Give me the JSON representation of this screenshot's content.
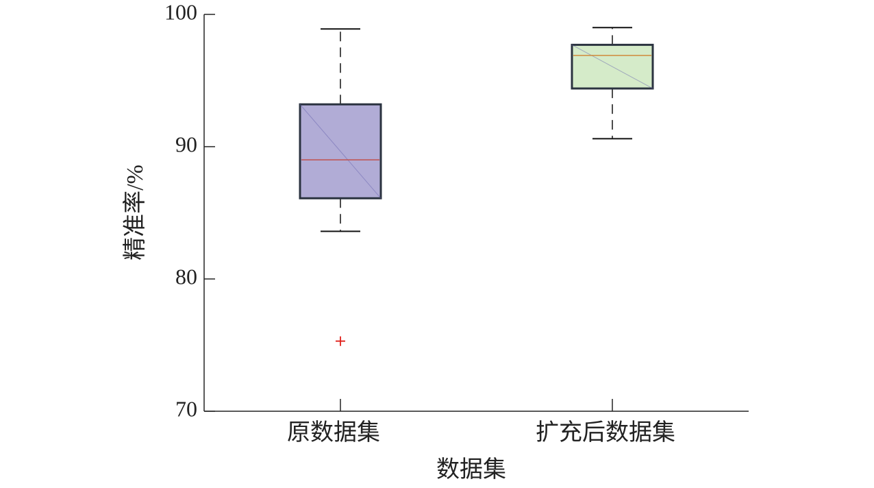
{
  "chart_data": {
    "type": "box",
    "xlabel": "数据集",
    "ylabel": "精准率/%",
    "categories": [
      "原数据集",
      "扩充后数据集"
    ],
    "boxes": [
      {
        "whisker_low": 83.6,
        "q1": 86.1,
        "median": 89.0,
        "q3": 93.2,
        "whisker_high": 98.9,
        "outliers": [
          75.3
        ],
        "color": "#b1acd6",
        "median_color": "#c0504d"
      },
      {
        "whisker_low": 90.6,
        "q1": 94.4,
        "median": 96.9,
        "q3": 97.7,
        "whisker_high": 99.0,
        "outliers": [],
        "color": "#d5ebc9",
        "median_color": "#d08a3a"
      }
    ],
    "outlier_color": "#e0201b",
    "ylim": [
      70,
      100
    ],
    "yticks": [
      70,
      80,
      90,
      100
    ]
  }
}
